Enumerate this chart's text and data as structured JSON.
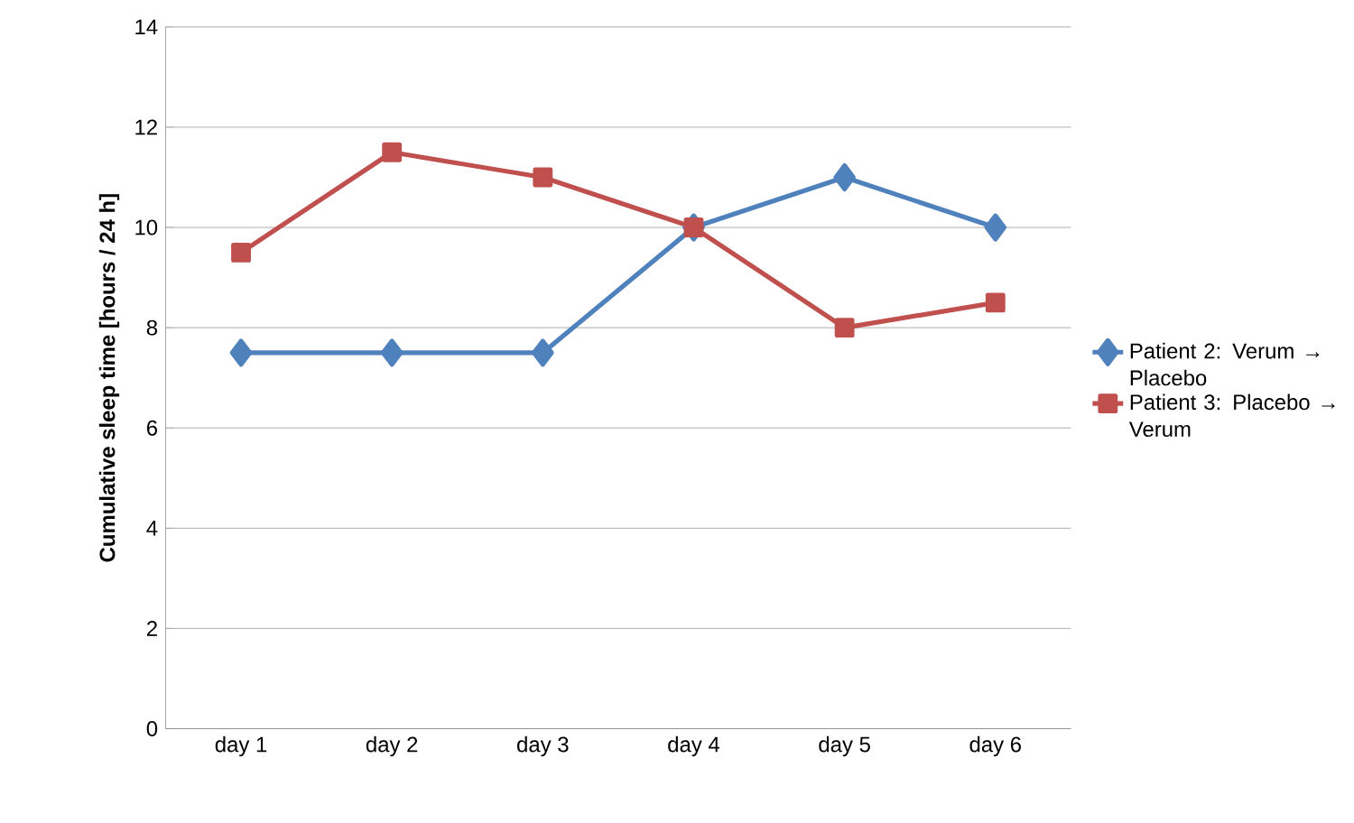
{
  "chart_data": {
    "type": "line",
    "ylabel": "Cumulative sleep time [hours / 24 h]",
    "categories": [
      "day 1",
      "day 2",
      "day 3",
      "day 4",
      "day 5",
      "day 6"
    ],
    "series": [
      {
        "name": "Patient 2: Verum → Placebo",
        "color": "#4f81bd",
        "marker": "diamond",
        "values": [
          7.5,
          7.5,
          7.5,
          10,
          11,
          10
        ]
      },
      {
        "name": "Patient 3: Placebo → Verum",
        "color": "#c0504d",
        "marker": "square",
        "values": [
          9.5,
          11.5,
          11,
          10,
          8,
          8.5
        ]
      }
    ],
    "ylim": [
      0,
      14
    ],
    "yticks": [
      0,
      2,
      4,
      6,
      8,
      10,
      12,
      14
    ],
    "grid": "y",
    "legend": "right",
    "line_style": "solid"
  }
}
